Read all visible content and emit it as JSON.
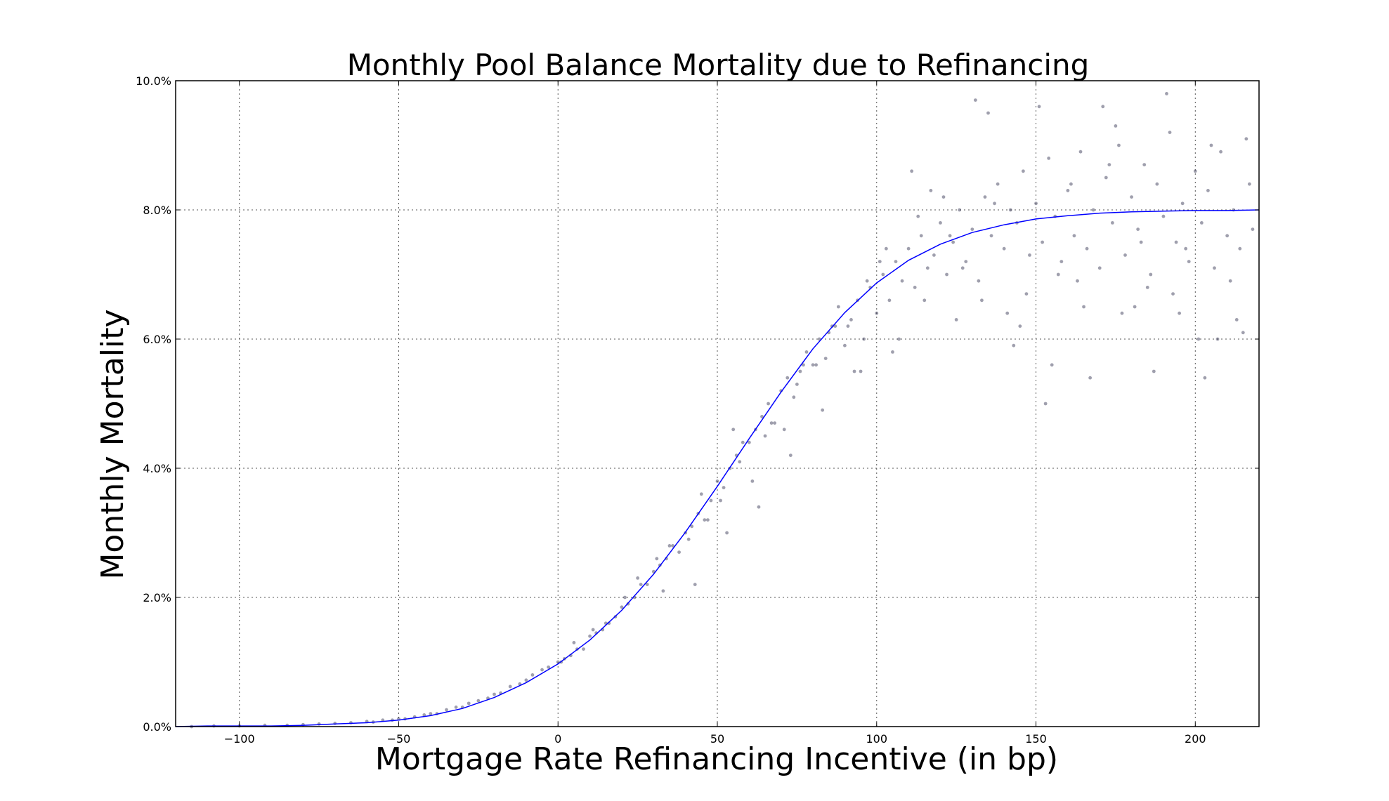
{
  "chart_data": {
    "type": "scatter",
    "title": "Monthly Pool Balance Mortality due to Refinancing",
    "xlabel": "Mortgage Rate Refinancing Incentive (in bp)",
    "ylabel": "Monthly Mortality",
    "xlim": [
      -120,
      220
    ],
    "ylim": [
      0,
      10
    ],
    "x_ticks": [
      -100,
      -50,
      0,
      50,
      100,
      150,
      200
    ],
    "x_tick_labels": [
      "−100",
      "−50",
      "0",
      "50",
      "100",
      "150",
      "200"
    ],
    "y_ticks": [
      0,
      2,
      4,
      6,
      8,
      10
    ],
    "y_tick_labels": [
      "0.0%",
      "2.0%",
      "4.0%",
      "6.0%",
      "8.0%",
      "10.0%"
    ],
    "grid": true,
    "colors": {
      "points": "#2a2a4a",
      "fit_line": "#0000ff"
    },
    "fit_curve": {
      "x": [
        -120,
        -110,
        -100,
        -90,
        -80,
        -70,
        -60,
        -50,
        -40,
        -30,
        -20,
        -10,
        0,
        10,
        20,
        30,
        40,
        50,
        60,
        70,
        80,
        90,
        100,
        110,
        120,
        130,
        140,
        150,
        160,
        170,
        180,
        190,
        200,
        210,
        220
      ],
      "y": [
        0.0,
        0.01,
        0.01,
        0.01,
        0.02,
        0.04,
        0.06,
        0.1,
        0.17,
        0.28,
        0.45,
        0.68,
        0.97,
        1.34,
        1.8,
        2.36,
        3.01,
        3.72,
        4.46,
        5.18,
        5.85,
        6.41,
        6.87,
        7.22,
        7.47,
        7.65,
        7.77,
        7.86,
        7.91,
        7.95,
        7.97,
        7.98,
        7.99,
        7.99,
        8.0
      ]
    },
    "scatter": {
      "x": [
        -115,
        -108,
        -100,
        -92,
        -85,
        -80,
        -75,
        -70,
        -65,
        -60,
        -58,
        -55,
        -52,
        -50,
        -48,
        -45,
        -42,
        -40,
        -38,
        -35,
        -32,
        -30,
        -28,
        -25,
        -22,
        -20,
        -18,
        -15,
        -12,
        -10,
        -8,
        -5,
        -3,
        0,
        2,
        4,
        6,
        8,
        10,
        12,
        14,
        16,
        18,
        20,
        22,
        24,
        26,
        28,
        30,
        32,
        34,
        36,
        38,
        40,
        42,
        44,
        46,
        48,
        50,
        52,
        54,
        56,
        58,
        60,
        62,
        64,
        66,
        68,
        70,
        72,
        74,
        76,
        78,
        80,
        82,
        84,
        86,
        88,
        90,
        92,
        94,
        96,
        98,
        100,
        102,
        104,
        106,
        108,
        110,
        112,
        114,
        116,
        118,
        120,
        122,
        124,
        126,
        128,
        130,
        132,
        134,
        136,
        138,
        140,
        142,
        144,
        146,
        148,
        150,
        152,
        154,
        156,
        158,
        160,
        162,
        164,
        166,
        168,
        170,
        172,
        174,
        176,
        178,
        180,
        182,
        184,
        186,
        188,
        190,
        192,
        194,
        196,
        198,
        200,
        202,
        204,
        206,
        208,
        210,
        212,
        214,
        216,
        218,
        5,
        15,
        25,
        35,
        45,
        55,
        65,
        75,
        85,
        95,
        105,
        115,
        125,
        135,
        145,
        155,
        165,
        175,
        185,
        195,
        205,
        215,
        1,
        11,
        21,
        31,
        41,
        51,
        61,
        71,
        81,
        91,
        101,
        111,
        121,
        131,
        141,
        151,
        161,
        171,
        181,
        191,
        201,
        211,
        33,
        43,
        53,
        63,
        73,
        83,
        93,
        103,
        113,
        123,
        133,
        143,
        153,
        163,
        173,
        183,
        193,
        203,
        213,
        47,
        57,
        67,
        77,
        87,
        97,
        107,
        117,
        127,
        137,
        147,
        157,
        167,
        177,
        187,
        197,
        207,
        217
      ],
      "y": [
        0.0,
        0.01,
        0.01,
        0.02,
        0.02,
        0.03,
        0.04,
        0.05,
        0.06,
        0.08,
        0.07,
        0.1,
        0.1,
        0.12,
        0.12,
        0.15,
        0.18,
        0.2,
        0.2,
        0.26,
        0.3,
        0.3,
        0.36,
        0.4,
        0.44,
        0.5,
        0.52,
        0.62,
        0.66,
        0.72,
        0.8,
        0.88,
        0.92,
        1.0,
        1.05,
        1.1,
        1.2,
        1.2,
        1.4,
        1.45,
        1.5,
        1.6,
        1.7,
        1.85,
        1.9,
        2.0,
        2.2,
        2.2,
        2.4,
        2.5,
        2.6,
        2.8,
        2.7,
        3.0,
        3.1,
        3.3,
        3.2,
        3.5,
        3.8,
        3.7,
        4.0,
        4.2,
        4.4,
        4.4,
        4.6,
        4.8,
        5.0,
        4.7,
        5.2,
        5.4,
        5.1,
        5.5,
        5.8,
        5.6,
        6.0,
        5.7,
        6.2,
        6.5,
        5.9,
        6.3,
        6.6,
        6.0,
        6.8,
        6.4,
        7.0,
        6.6,
        7.2,
        6.9,
        7.4,
        6.8,
        7.6,
        7.1,
        7.3,
        7.8,
        7.0,
        7.5,
        8.0,
        7.2,
        7.7,
        6.9,
        8.2,
        7.6,
        8.4,
        7.4,
        8.0,
        7.8,
        8.6,
        7.3,
        8.1,
        7.5,
        8.8,
        7.9,
        7.2,
        8.3,
        7.6,
        8.9,
        7.4,
        8.0,
        7.1,
        8.5,
        7.8,
        9.0,
        7.3,
        8.2,
        7.7,
        8.7,
        7.0,
        8.4,
        7.9,
        9.2,
        7.5,
        8.1,
        7.2,
        8.6,
        7.8,
        8.3,
        7.1,
        8.9,
        7.6,
        8.0,
        7.4,
        9.1,
        7.7,
        1.3,
        1.6,
        2.3,
        2.8,
        3.6,
        4.6,
        4.5,
        5.3,
        6.1,
        5.5,
        5.8,
        6.6,
        6.3,
        9.5,
        6.2,
        5.6,
        6.5,
        9.3,
        6.8,
        6.4,
        9.0,
        6.1,
        1.0,
        1.5,
        2.0,
        2.6,
        2.9,
        3.5,
        3.8,
        4.6,
        5.6,
        6.2,
        7.2,
        8.6,
        8.2,
        9.7,
        6.4,
        9.6,
        8.4,
        9.6,
        6.5,
        9.8,
        6.0,
        6.9,
        2.1,
        2.2,
        3.0,
        3.4,
        4.2,
        4.9,
        5.5,
        7.4,
        7.9,
        7.6,
        6.6,
        5.9,
        5.0,
        6.9,
        8.7,
        7.5,
        6.7,
        5.4,
        6.3,
        3.2,
        4.1,
        4.7,
        5.6,
        6.2,
        6.9,
        6.0,
        8.3,
        7.1,
        8.1,
        6.7,
        7.0,
        5.4,
        6.4,
        5.5,
        7.4,
        6.0,
        8.4
      ]
    }
  }
}
